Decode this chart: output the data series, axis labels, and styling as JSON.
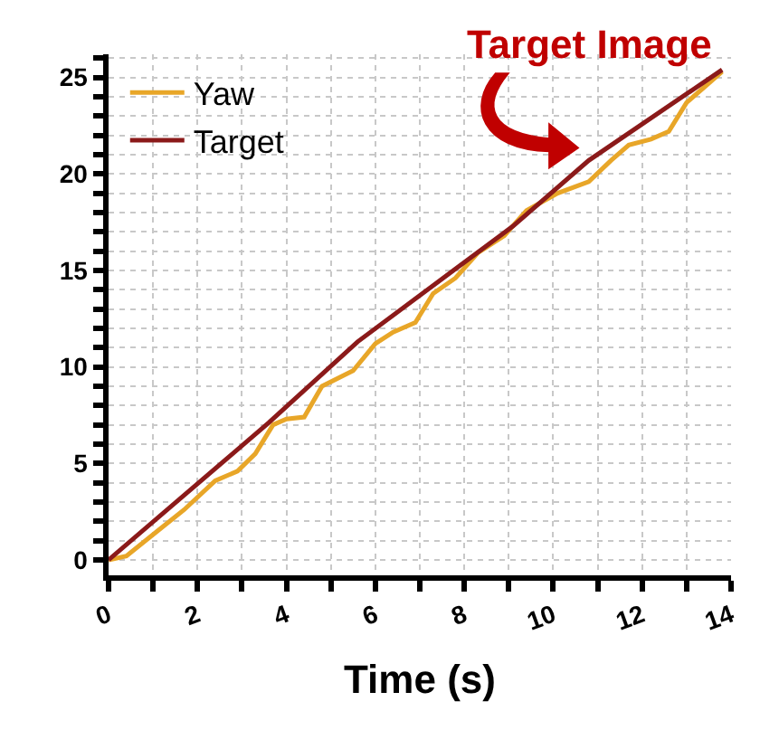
{
  "chart_data": {
    "type": "line",
    "xlabel": "Time (s)",
    "annotations": [
      {
        "text": "Target Image",
        "x": 10.8,
        "y": 20.7
      }
    ],
    "series": [
      {
        "name": "Yaw",
        "color": "#e8a628",
        "x": [
          0,
          0.4,
          1.1,
          1.7,
          2.4,
          2.9,
          3.3,
          3.7,
          4.0,
          4.4,
          4.8,
          5.5,
          6.0,
          6.4,
          6.9,
          7.3,
          7.8,
          8.3,
          8.9,
          9.4,
          10.1,
          10.8,
          11.3,
          11.7,
          12.2,
          12.6,
          13.0,
          13.4,
          13.8
        ],
        "values": [
          0,
          0.2,
          1.5,
          2.6,
          4.1,
          4.6,
          5.5,
          7.0,
          7.3,
          7.4,
          9.0,
          9.8,
          11.2,
          11.8,
          12.3,
          13.8,
          14.6,
          15.9,
          16.8,
          18.1,
          19.0,
          19.6,
          20.7,
          21.5,
          21.8,
          22.2,
          23.7,
          24.5,
          25.3
        ]
      },
      {
        "name": "Target",
        "color": "#8b1a1a",
        "x": [
          0,
          3.6,
          5.6,
          7.7,
          9.1,
          10.8,
          13.8
        ],
        "values": [
          0,
          7.1,
          11.3,
          14.9,
          17.3,
          20.7,
          25.4
        ]
      }
    ],
    "xlim": [
      0,
      14
    ],
    "xticks": [
      0,
      {
        "value": 1,
        "label": null
      },
      2,
      {
        "value": 3,
        "label": null
      },
      4,
      {
        "value": 5,
        "label": null
      },
      6,
      {
        "value": 7,
        "label": null
      },
      8,
      {
        "value": 9,
        "label": null
      },
      10,
      {
        "value": 11,
        "label": null
      },
      12,
      {
        "value": 13,
        "label": null
      },
      14
    ],
    "ylim": [
      -0.8,
      26.2
    ],
    "yticks": [
      0,
      {
        "value": 1,
        "label": null
      },
      {
        "value": 2,
        "label": null
      },
      {
        "value": 3,
        "label": null
      },
      {
        "value": 4,
        "label": null
      },
      5,
      {
        "value": 6,
        "label": null
      },
      {
        "value": 7,
        "label": null
      },
      {
        "value": 8,
        "label": null
      },
      {
        "value": 9,
        "label": null
      },
      10,
      {
        "value": 11,
        "label": null
      },
      {
        "value": 12,
        "label": null
      },
      {
        "value": 13,
        "label": null
      },
      {
        "value": 14,
        "label": null
      },
      15,
      {
        "value": 16,
        "label": null
      },
      {
        "value": 17,
        "label": null
      },
      {
        "value": 18,
        "label": null
      },
      {
        "value": 19,
        "label": null
      },
      20,
      {
        "value": 21,
        "label": null
      },
      {
        "value": 22,
        "label": null
      },
      {
        "value": 23,
        "label": null
      },
      {
        "value": 24,
        "label": null
      },
      25,
      {
        "value": 26,
        "label": null
      }
    ],
    "grid": true,
    "legend": "top left",
    "marker": "none",
    "line_style": "solid"
  }
}
